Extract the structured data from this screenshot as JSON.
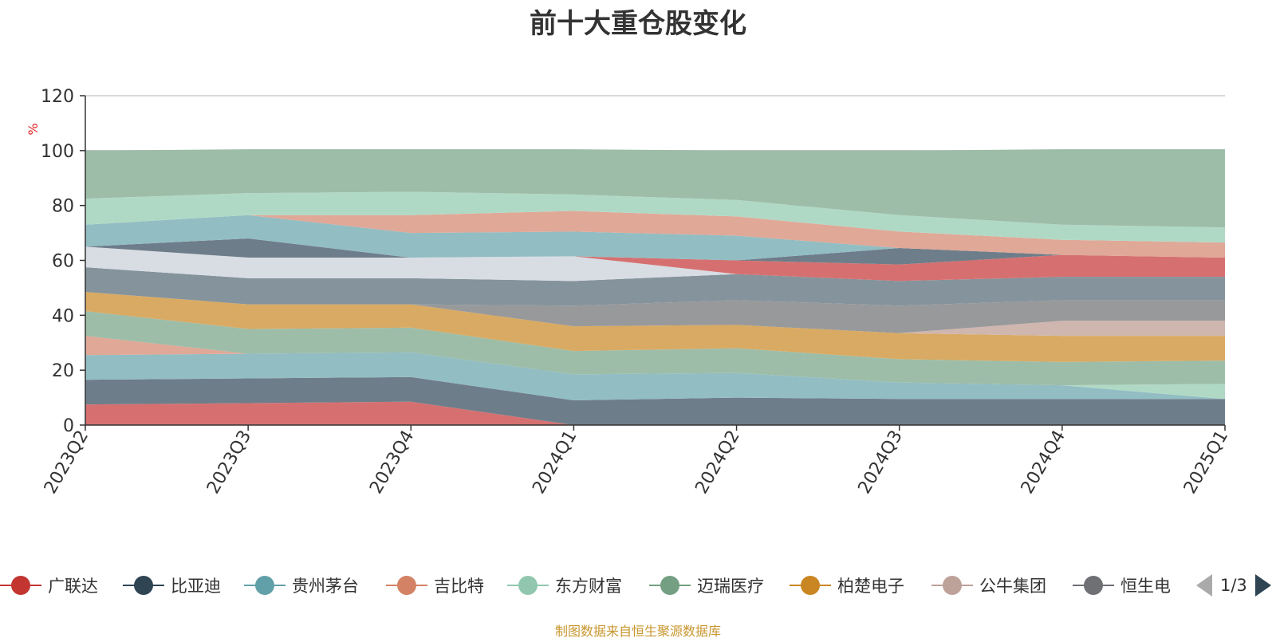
{
  "source_note": "制图数据来自恒生聚源数据库",
  "pager": {
    "page_text": "1/3"
  },
  "chart_data": {
    "type": "area",
    "stacked": true,
    "title": "前十大重仓股变化",
    "ylabel": "%",
    "ylim": [
      0,
      120
    ],
    "yticks": [
      0,
      20,
      40,
      60,
      80,
      100,
      120
    ],
    "categories": [
      "2023Q2",
      "2023Q3",
      "2023Q4",
      "2024Q1",
      "2024Q2",
      "2024Q3",
      "2024Q4",
      "2025Q1"
    ],
    "grid": true,
    "legend_position": "bottom",
    "series": [
      {
        "name": "广联达",
        "color": "#c23531",
        "fill": "#d67070",
        "values": [
          7.5,
          8,
          8.5,
          0,
          0,
          0,
          0,
          0
        ]
      },
      {
        "name": "比亚迪",
        "color": "#2f4554",
        "fill": "#6e7d8a",
        "values": [
          9,
          9,
          9,
          9,
          10,
          9.5,
          9.5,
          9.5
        ]
      },
      {
        "name": "贵州茅台",
        "color": "#61a0a8",
        "fill": "#92bdc3",
        "values": [
          9,
          9,
          9,
          9.5,
          9,
          6,
          5,
          0
        ]
      },
      {
        "name": "吉比特",
        "color": "#d48265",
        "fill": "#e0a897",
        "values": [
          7,
          0,
          0,
          0,
          0,
          0,
          0,
          0
        ]
      },
      {
        "name": "东方财富",
        "color": "#91c7ae",
        "fill": "#b0d9c5",
        "values": [
          0,
          0,
          0,
          0,
          0,
          0,
          0,
          5.5
        ]
      },
      {
        "name": "迈瑞医疗",
        "color": "#749f83",
        "fill": "#9dbda8",
        "values": [
          9,
          9,
          9,
          8.5,
          9,
          8.5,
          8.5,
          8.5
        ]
      },
      {
        "name": "柏楚电子",
        "color": "#ca8622",
        "fill": "#d9aa63",
        "values": [
          7,
          9,
          8.5,
          9,
          8.5,
          9.5,
          9.5,
          9
        ]
      },
      {
        "name": "公牛集团",
        "color": "#bda29a",
        "fill": "#cfb6ae",
        "values": [
          0,
          0,
          0,
          0,
          0,
          0,
          5.5,
          5.5
        ]
      },
      {
        "name": "恒生电子",
        "color": "#6e7074",
        "fill": "#98999b",
        "values": [
          0,
          0,
          0,
          7.5,
          9,
          10,
          7.5,
          7.5
        ]
      },
      {
        "name": "",
        "color": "#546570",
        "fill": "#85939c",
        "values": [
          9,
          9.5,
          9.5,
          9,
          9.5,
          9,
          8.5,
          8.5
        ]
      },
      {
        "name": "",
        "color": "#c4ccd3",
        "fill": "#d8dde3",
        "values": [
          7.5,
          7.5,
          7.5,
          9,
          0,
          0,
          0,
          0
        ]
      },
      {
        "name": "",
        "color": "#c23531",
        "fill": "#d67070",
        "values": [
          0,
          0,
          0,
          0,
          5,
          6,
          8,
          7
        ]
      },
      {
        "name": "",
        "color": "#2f4554",
        "fill": "#6e7d8a",
        "values": [
          0,
          7,
          0,
          0,
          0,
          6,
          0,
          0
        ]
      },
      {
        "name": "",
        "color": "#61a0a8",
        "fill": "#92bdc3",
        "values": [
          8,
          8.5,
          9,
          9,
          9,
          0,
          0,
          0
        ]
      },
      {
        "name": "",
        "color": "#d48265",
        "fill": "#e0a897",
        "values": [
          0,
          0,
          6.5,
          7.5,
          7,
          6,
          5.5,
          5.5
        ]
      },
      {
        "name": "",
        "color": "#91c7ae",
        "fill": "#b0d9c5",
        "values": [
          9.5,
          8,
          8.5,
          6,
          6,
          6,
          5.5,
          5.5
        ]
      },
      {
        "name": "",
        "color": "#749f83",
        "fill": "#9dbda8",
        "values": [
          17.5,
          16,
          15.5,
          16.5,
          18,
          23.5,
          27.5,
          28.5
        ]
      }
    ],
    "legend_visible": [
      "广联达",
      "比亚迪",
      "贵州茅台",
      "吉比特",
      "东方财富",
      "迈瑞医疗",
      "柏楚电子",
      "公牛集团",
      "恒生电"
    ]
  }
}
